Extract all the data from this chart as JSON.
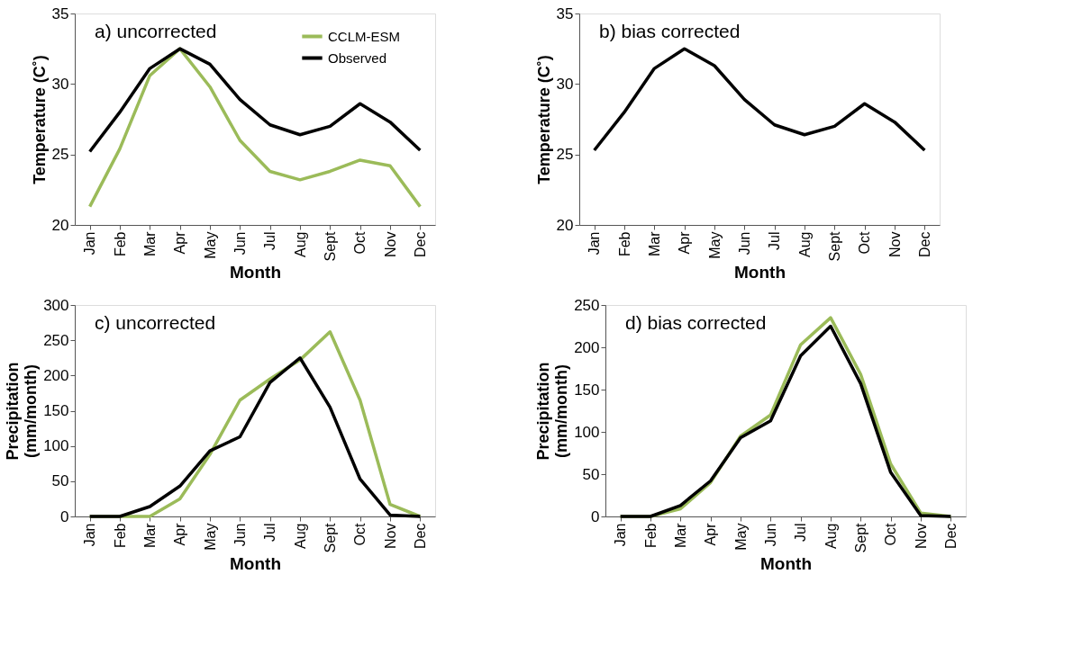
{
  "chart_data": [
    {
      "type": "line",
      "title": "a) uncorrected",
      "xlabel": "Month",
      "ylabel": "Temperature (C˚)",
      "categories": [
        "Jan",
        "Feb",
        "Mar",
        "Apr",
        "May",
        "Jun",
        "Jul",
        "Aug",
        "Sept",
        "Oct",
        "Nov",
        "Dec"
      ],
      "ylim": [
        20,
        35
      ],
      "yticks": [
        20,
        25,
        30,
        35
      ],
      "grid": false,
      "legend": "top right",
      "marker": "none",
      "line_style": "solid",
      "series": [
        {
          "name": "CCLM-ESM",
          "color": "#9bbb59",
          "values": [
            21.3,
            25.4,
            30.6,
            32.5,
            29.8,
            26.0,
            23.8,
            23.2,
            23.8,
            24.6,
            24.2,
            21.3
          ]
        },
        {
          "name": "Observed",
          "color": "#000000",
          "values": [
            25.2,
            28.0,
            31.1,
            32.5,
            31.4,
            28.9,
            27.1,
            26.4,
            27.0,
            28.6,
            27.3,
            25.3
          ]
        }
      ]
    },
    {
      "type": "line",
      "title": "b) bias corrected",
      "xlabel": "Month",
      "ylabel": "Temperature (C˚)",
      "categories": [
        "Jan",
        "Feb",
        "Mar",
        "Apr",
        "May",
        "Jun",
        "Jul",
        "Aug",
        "Sept",
        "Oct",
        "Nov",
        "Dec"
      ],
      "ylim": [
        20,
        35
      ],
      "yticks": [
        20,
        25,
        30,
        35
      ],
      "grid": false,
      "legend": false,
      "marker": "none",
      "line_style": "solid",
      "series": [
        {
          "color": "#000000",
          "values": [
            25.3,
            28.0,
            31.1,
            32.5,
            31.3,
            28.9,
            27.1,
            26.4,
            27.0,
            28.6,
            27.3,
            25.3
          ]
        }
      ]
    },
    {
      "type": "line",
      "title": "c) uncorrected",
      "xlabel": "Month",
      "ylabel": "Precipitation (mm/month)",
      "categories": [
        "Jan",
        "Feb",
        "Mar",
        "Apr",
        "May",
        "Jun",
        "Jul",
        "Aug",
        "Sept",
        "Oct",
        "Nov",
        "Dec"
      ],
      "ylim": [
        0,
        300
      ],
      "yticks": [
        0,
        50,
        100,
        150,
        200,
        250,
        300
      ],
      "grid": false,
      "legend": false,
      "marker": "none",
      "line_style": "solid",
      "series": [
        {
          "color": "#9bbb59",
          "values": [
            0,
            0,
            0,
            25,
            88,
            165,
            195,
            222,
            262,
            165,
            17,
            0
          ]
        },
        {
          "color": "#000000",
          "values": [
            0,
            0,
            14,
            43,
            93,
            113,
            190,
            225,
            155,
            53,
            2,
            0
          ]
        }
      ]
    },
    {
      "type": "line",
      "title": "d) bias corrected",
      "xlabel": "Month",
      "ylabel": "Precipitation (mm/month)",
      "categories": [
        "Jan",
        "Feb",
        "Mar",
        "Apr",
        "May",
        "Jun",
        "Jul",
        "Aug",
        "Sept",
        "Oct",
        "Nov",
        "Dec"
      ],
      "ylim": [
        0,
        250
      ],
      "yticks": [
        0,
        50,
        100,
        150,
        200,
        250
      ],
      "grid": false,
      "legend": false,
      "marker": "none",
      "line_style": "solid",
      "series": [
        {
          "color": "#9bbb59",
          "values": [
            0,
            0,
            9,
            40,
            95,
            120,
            203,
            235,
            168,
            62,
            4,
            0
          ]
        },
        {
          "color": "#000000",
          "values": [
            0,
            0,
            13,
            42,
            93,
            113,
            190,
            225,
            157,
            52,
            1,
            0
          ]
        }
      ]
    }
  ]
}
